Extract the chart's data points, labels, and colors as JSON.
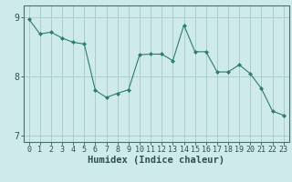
{
  "x": [
    0,
    1,
    2,
    3,
    4,
    5,
    6,
    7,
    8,
    9,
    10,
    11,
    12,
    13,
    14,
    15,
    16,
    17,
    18,
    19,
    20,
    21,
    22,
    23
  ],
  "y": [
    8.97,
    8.72,
    8.75,
    8.65,
    8.58,
    8.55,
    7.77,
    7.65,
    7.72,
    7.78,
    8.37,
    8.38,
    8.38,
    8.27,
    8.87,
    8.42,
    8.42,
    8.08,
    8.08,
    8.2,
    8.05,
    7.8,
    7.42,
    7.35
  ],
  "xlim": [
    -0.5,
    23.5
  ],
  "ylim": [
    6.9,
    9.2
  ],
  "yticks": [
    7,
    8,
    9
  ],
  "xticks": [
    0,
    1,
    2,
    3,
    4,
    5,
    6,
    7,
    8,
    9,
    10,
    11,
    12,
    13,
    14,
    15,
    16,
    17,
    18,
    19,
    20,
    21,
    22,
    23
  ],
  "xlabel": "Humidex (Indice chaleur)",
  "line_color": "#2e7d6e",
  "marker": "D",
  "marker_size": 2.0,
  "bg_color": "#ceeaea",
  "grid_color": "#a8c8c8",
  "spine_color": "#4a7070",
  "label_color": "#2e5050",
  "font_size_axis": 6.0,
  "font_size_xlabel": 7.5
}
